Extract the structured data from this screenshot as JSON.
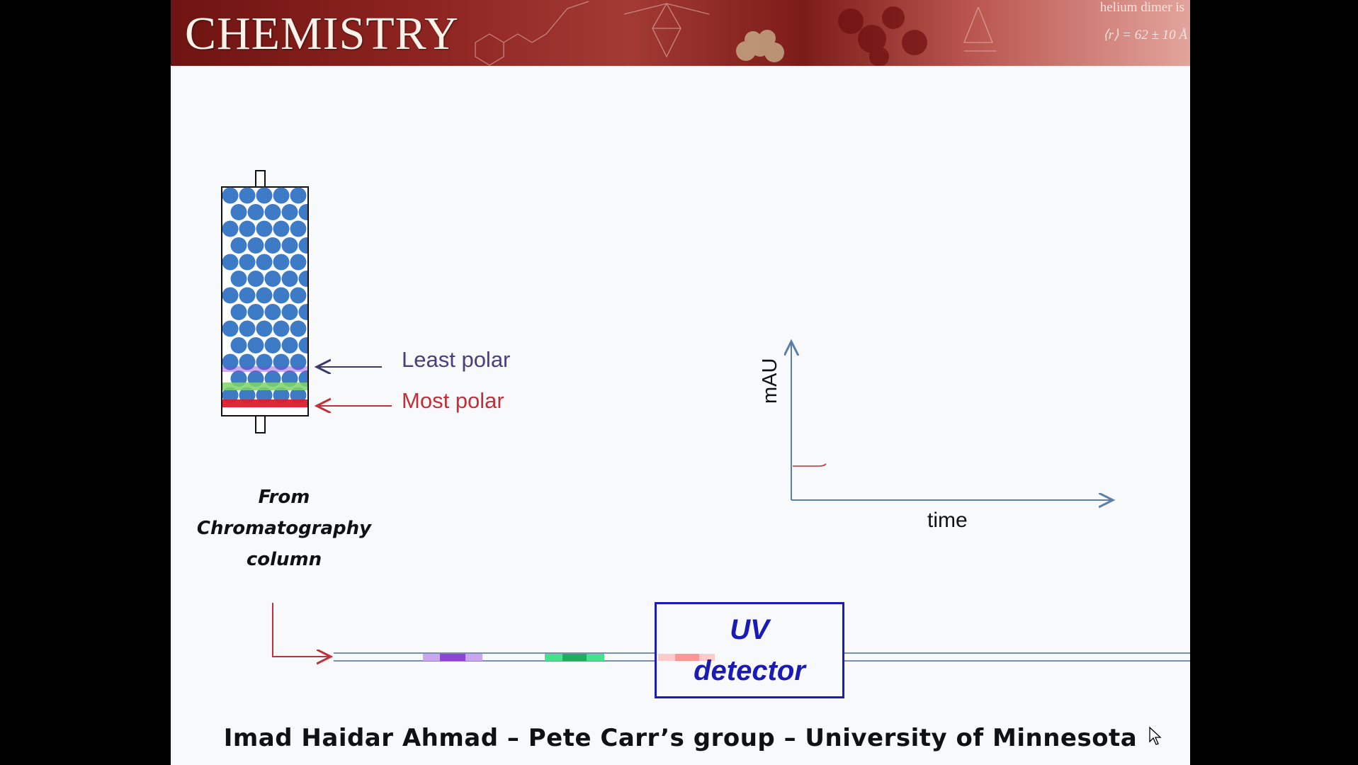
{
  "banner": {
    "title": "CHEMISTRY",
    "note_top": "helium dimer is",
    "note_formula": "⟨r⟩ = 62 ± 10 Å"
  },
  "column": {
    "labels": {
      "least_polar": "Least polar",
      "most_polar": "Most polar"
    },
    "caption": [
      "From",
      "Chromatography",
      "column"
    ]
  },
  "plot": {
    "ylabel": "mAU",
    "xlabel": "time"
  },
  "detector": {
    "line1": "UV",
    "line2": "detector"
  },
  "credit": "Imad Haidar Ahmad – Pete Carr’s group – University of Minnesota",
  "colors": {
    "banner": "#8e2420",
    "bead": "#3e7bc6",
    "least_polar": "#4a3f7a",
    "most_polar": "#c0303a",
    "band_purple": "#8f44d6",
    "band_green": "#2fc77a",
    "band_red": "#e8343c",
    "detector_border": "#1c1cb0"
  }
}
